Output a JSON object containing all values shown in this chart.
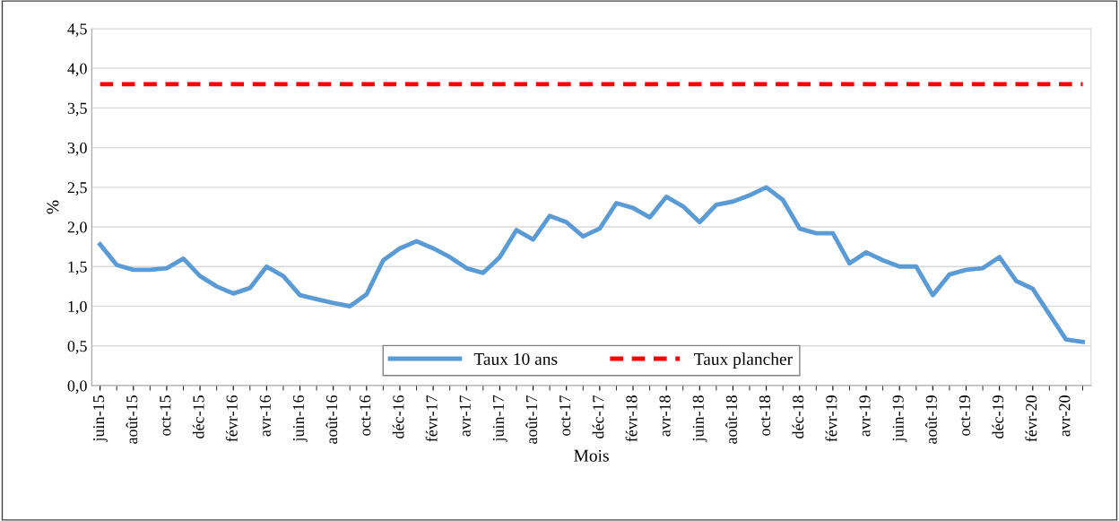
{
  "chart_data": {
    "type": "line",
    "xlabel": "Mois",
    "ylabel": "%",
    "categories": [
      "juin-15",
      null,
      "août-15",
      null,
      "oct-15",
      null,
      "déc-15",
      null,
      "févr-16",
      null,
      "avr-16",
      null,
      "juin-16",
      null,
      "août-16",
      null,
      "oct-16",
      null,
      "déc-16",
      null,
      "févr-17",
      null,
      "avr-17",
      null,
      "juin-17",
      null,
      "août-17",
      null,
      "oct-17",
      null,
      "déc-17",
      null,
      "févr-18",
      null,
      "avr-18",
      null,
      "juin-18",
      null,
      "août-18",
      null,
      "oct-18",
      null,
      "déc-18",
      null,
      "févr-19",
      null,
      "avr-19",
      null,
      "juin-19",
      null,
      "août-19",
      null,
      "oct-19",
      null,
      "déc-19",
      null,
      "févr-20",
      null,
      "avr-20",
      null
    ],
    "series": [
      {
        "name": "Taux 10 ans",
        "color": "#5b9bd5",
        "line_style": "solid",
        "values": [
          1.78,
          1.52,
          1.46,
          1.46,
          1.48,
          1.6,
          1.38,
          1.25,
          1.16,
          1.23,
          1.5,
          1.38,
          1.14,
          1.09,
          1.04,
          1.0,
          1.15,
          1.58,
          1.73,
          1.82,
          1.73,
          1.62,
          1.48,
          1.42,
          1.62,
          1.96,
          1.84,
          2.14,
          2.06,
          1.88,
          1.98,
          2.3,
          2.24,
          2.12,
          2.38,
          2.26,
          2.06,
          2.28,
          2.32,
          2.4,
          2.5,
          2.34,
          1.98,
          1.92,
          1.92,
          1.54,
          1.68,
          1.58,
          1.5,
          1.5,
          1.14,
          1.4,
          1.46,
          1.48,
          1.62,
          1.32,
          1.22,
          0.9,
          0.58,
          0.55
        ]
      },
      {
        "name": "Taux plancher",
        "color": "#ff0000",
        "line_style": "dashed",
        "values": [
          3.8,
          3.8,
          3.8,
          3.8,
          3.8,
          3.8,
          3.8,
          3.8,
          3.8,
          3.8,
          3.8,
          3.8,
          3.8,
          3.8,
          3.8,
          3.8,
          3.8,
          3.8,
          3.8,
          3.8,
          3.8,
          3.8,
          3.8,
          3.8,
          3.8,
          3.8,
          3.8,
          3.8,
          3.8,
          3.8,
          3.8,
          3.8,
          3.8,
          3.8,
          3.8,
          3.8,
          3.8,
          3.8,
          3.8,
          3.8,
          3.8,
          3.8,
          3.8,
          3.8,
          3.8,
          3.8,
          3.8,
          3.8,
          3.8,
          3.8,
          3.8,
          3.8,
          3.8,
          3.8,
          3.8,
          3.8,
          3.8,
          3.8,
          3.8,
          3.8
        ]
      }
    ],
    "ylim": [
      0,
      4.5
    ],
    "yticks": [
      {
        "value": 0,
        "label": "0,0"
      },
      {
        "value": 0.5,
        "label": "0,5"
      },
      {
        "value": 1,
        "label": "1,0"
      },
      {
        "value": 1.5,
        "label": "1,5"
      },
      {
        "value": 2,
        "label": "2,0"
      },
      {
        "value": 2.5,
        "label": "2,5"
      },
      {
        "value": 3,
        "label": "3,0"
      },
      {
        "value": 3.5,
        "label": "3,5"
      },
      {
        "value": 4,
        "label": "4,0"
      },
      {
        "value": 4.5,
        "label": "4,5"
      }
    ],
    "grid": "y",
    "legend": "bottom",
    "marker": "none"
  }
}
